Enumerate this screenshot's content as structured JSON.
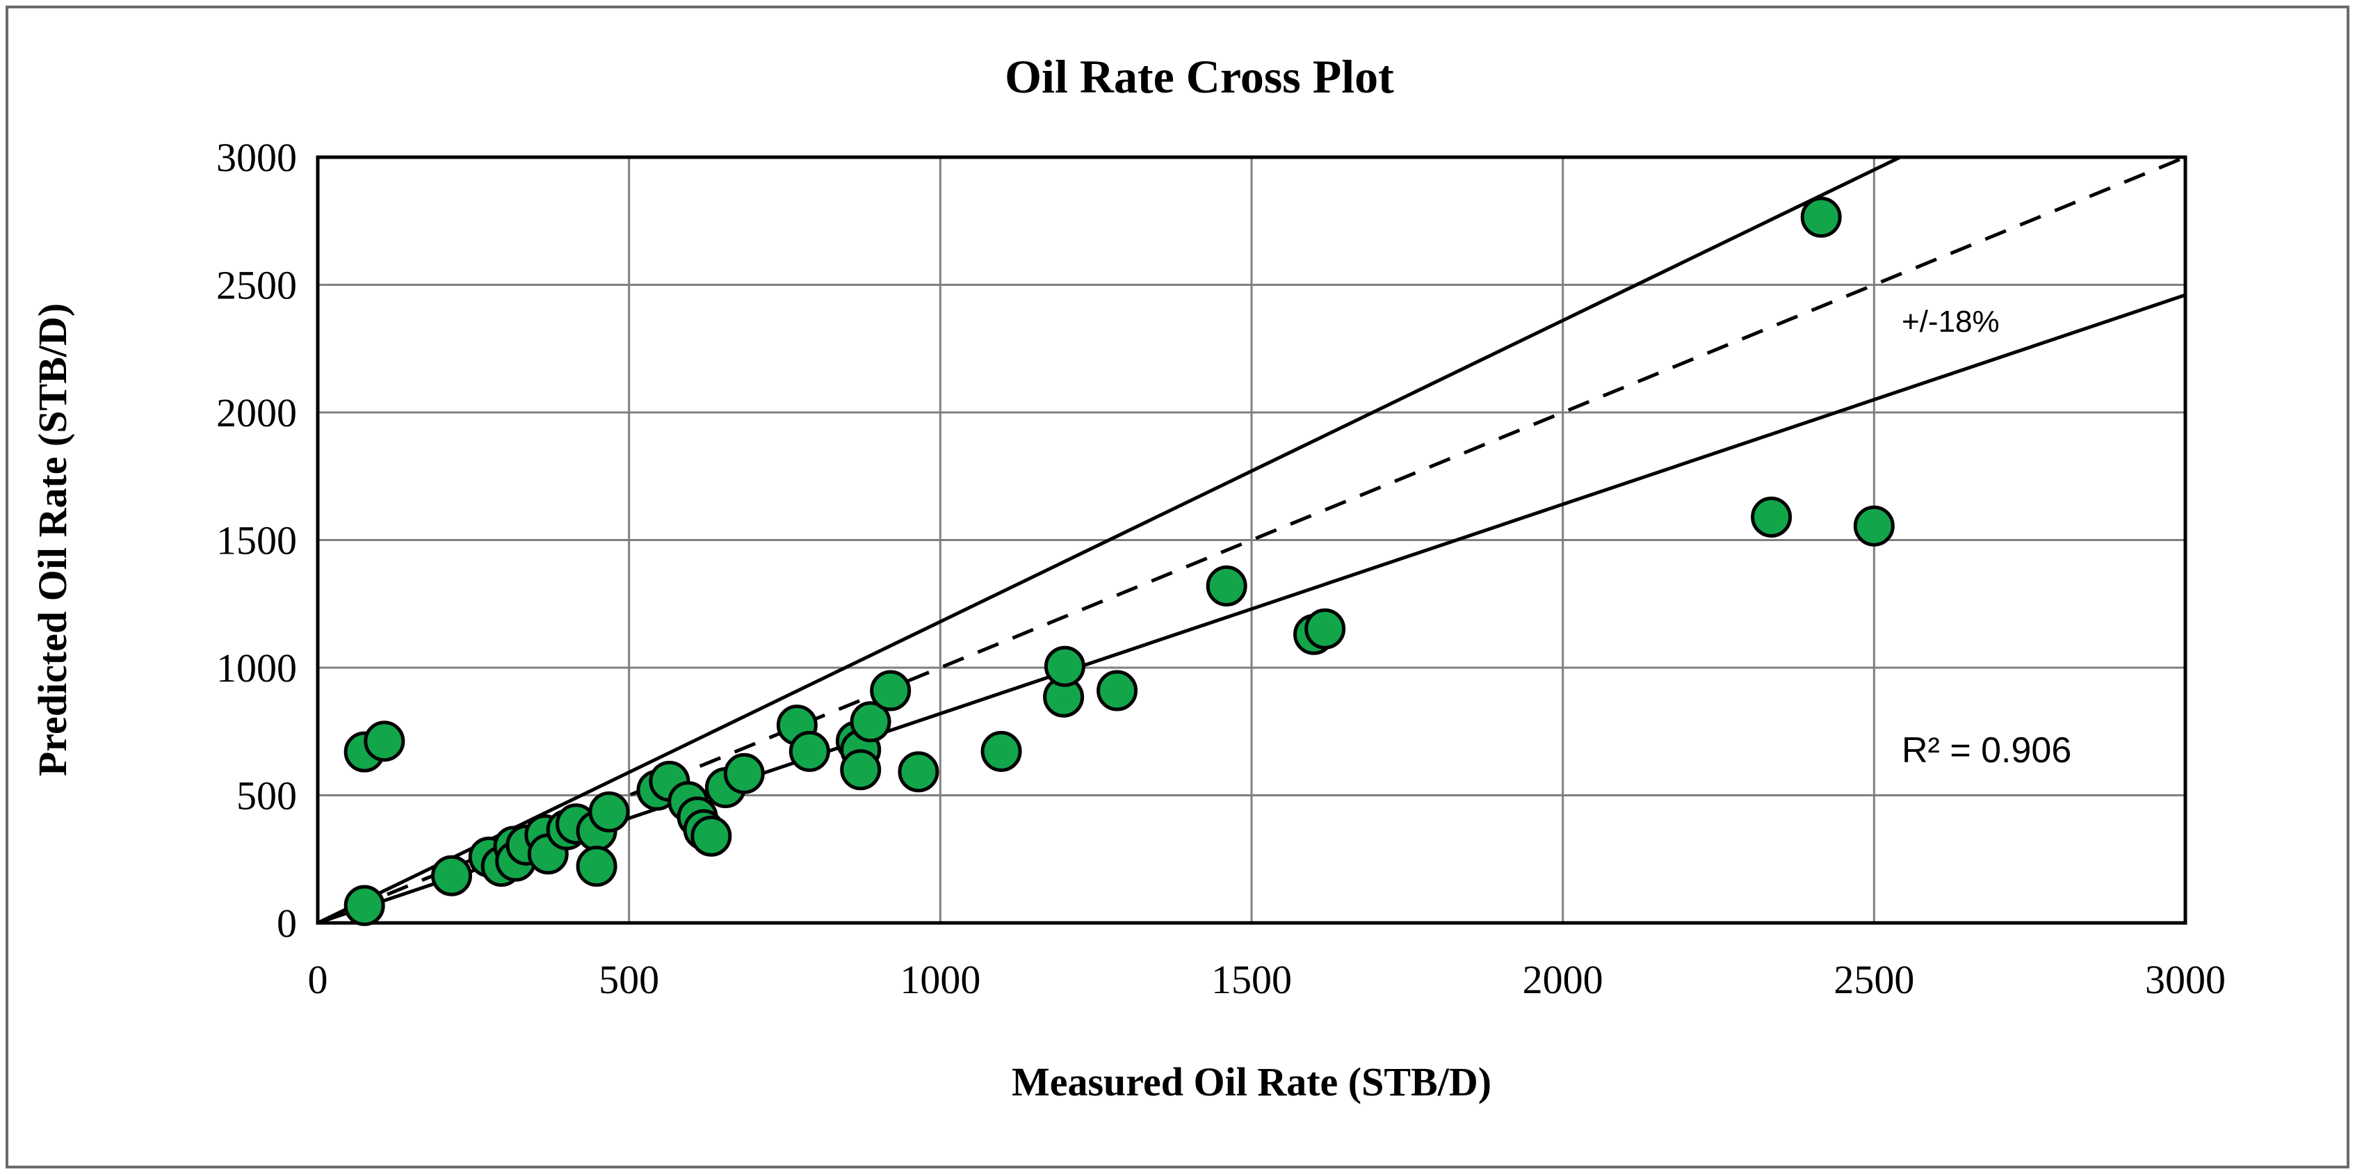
{
  "figure": {
    "title": "Oil Rate Cross Plot",
    "x_axis_title": "Measured Oil Rate (STB/D)",
    "y_axis_title": "Predicted Oil Rate (STB/D)",
    "annotations": {
      "tolerance_label": "+/-18%",
      "r_squared_label": "R² = 0.906"
    },
    "colors": {
      "marker_fill": "#12A54A",
      "marker_stroke": "#000000",
      "gridline": "#808080",
      "axis_line": "#000000",
      "reference_line": "#000000",
      "frame_border": "#6b6b6b",
      "background": "#FFFFFF",
      "text": "#000000"
    }
  },
  "chart_data": {
    "type": "scatter",
    "title": "Oil Rate Cross Plot",
    "xlabel": "Measured Oil Rate (STB/D)",
    "ylabel": "Predicted Oil Rate (STB/D)",
    "xlim": [
      0,
      3000
    ],
    "ylim": [
      0,
      3000
    ],
    "x_ticks": [
      0,
      500,
      1000,
      1500,
      2000,
      2500,
      3000
    ],
    "y_ticks": [
      0,
      500,
      1000,
      1500,
      2000,
      2500,
      3000
    ],
    "grid": true,
    "legend": false,
    "series": [
      {
        "name": "measured-vs-predicted",
        "marker": "circle",
        "points": [
          [
            75,
            68
          ],
          [
            75,
            670
          ],
          [
            107,
            712
          ],
          [
            215,
            185
          ],
          [
            275,
            258
          ],
          [
            295,
            222
          ],
          [
            315,
            300
          ],
          [
            318,
            242
          ],
          [
            335,
            305
          ],
          [
            365,
            345
          ],
          [
            370,
            270
          ],
          [
            400,
            365
          ],
          [
            415,
            388
          ],
          [
            448,
            360
          ],
          [
            448,
            222
          ],
          [
            468,
            435
          ],
          [
            545,
            520
          ],
          [
            565,
            555
          ],
          [
            595,
            475
          ],
          [
            610,
            415
          ],
          [
            620,
            365
          ],
          [
            632,
            340
          ],
          [
            655,
            530
          ],
          [
            685,
            585
          ],
          [
            770,
            775
          ],
          [
            790,
            672
          ],
          [
            865,
            712
          ],
          [
            872,
            678
          ],
          [
            872,
            600
          ],
          [
            888,
            788
          ],
          [
            920,
            910
          ],
          [
            965,
            592
          ],
          [
            1098,
            672
          ],
          [
            1198,
            885
          ],
          [
            1200,
            1005
          ],
          [
            1284,
            910
          ],
          [
            1460,
            1320
          ],
          [
            1600,
            1130
          ],
          [
            1618,
            1152
          ],
          [
            2335,
            1590
          ],
          [
            2415,
            2765
          ],
          [
            2500,
            1555
          ]
        ]
      }
    ],
    "reference_lines": [
      {
        "name": "unity-line",
        "style": "dashed",
        "x1": 0,
        "y1": 0,
        "x2": 3000,
        "y2": 3000
      },
      {
        "name": "upper-tolerance-line",
        "style": "solid",
        "x1": 0,
        "y1": 0,
        "x2": 2542,
        "y2": 3000
      },
      {
        "name": "lower-tolerance-line",
        "style": "solid",
        "x1": 0,
        "y1": 0,
        "x2": 3000,
        "y2": 2460
      }
    ],
    "annotations": [
      {
        "text": "+/-18%",
        "x": 2545,
        "y": 2360
      },
      {
        "text": "R² = 0.906",
        "x": 2545,
        "y": 681
      }
    ]
  }
}
